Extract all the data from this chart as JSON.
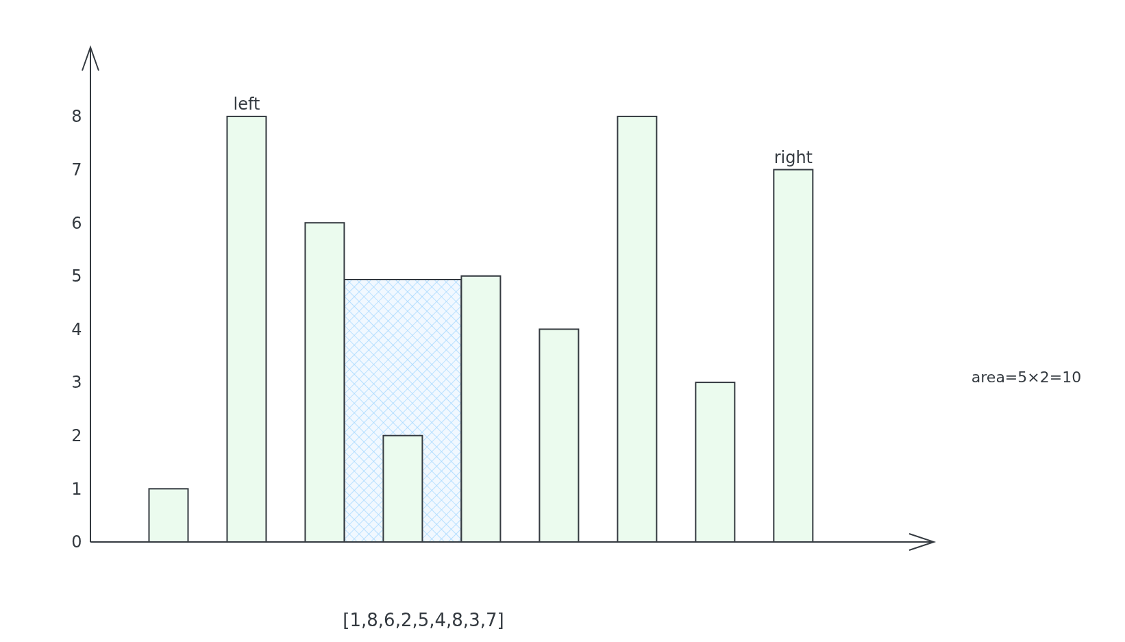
{
  "chart_data": {
    "type": "bar",
    "categories": [
      null,
      null,
      null,
      null,
      null,
      null,
      null,
      null,
      null
    ],
    "values": [
      1,
      8,
      6,
      2,
      5,
      4,
      8,
      3,
      7
    ],
    "color": "#ebfbee",
    "ylim": [
      0,
      9.3
    ],
    "yticks": [
      0,
      1,
      2,
      3,
      4,
      5,
      6,
      7,
      8
    ],
    "tick_labels": "y",
    "annotations": [
      "left",
      "right",
      "area=5×2=10",
      "[1,8,6,2,5,4,8,3,7]"
    ]
  }
}
